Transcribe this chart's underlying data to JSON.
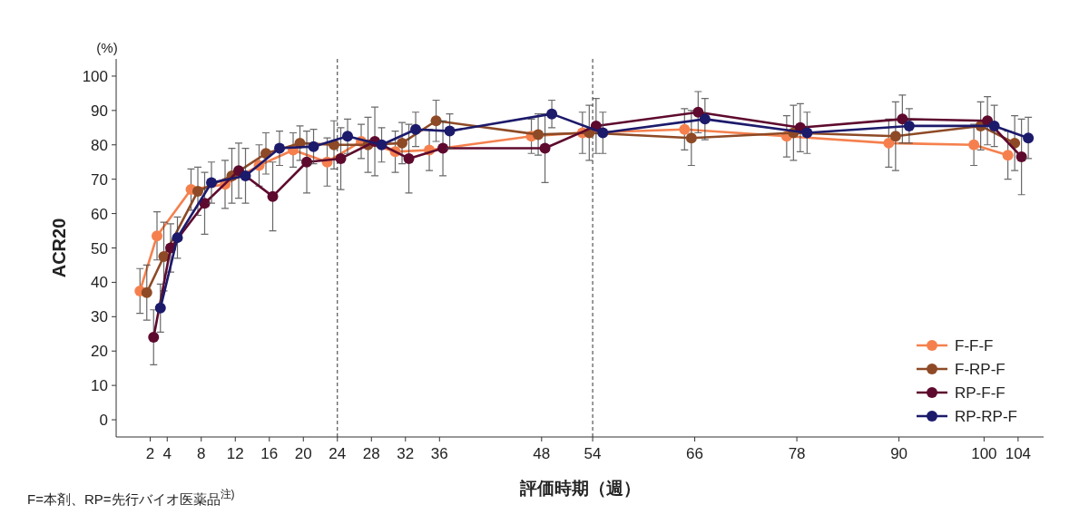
{
  "chart_data": {
    "type": "line",
    "ylabel": "ACR20",
    "xlabel": "評価時期（週）",
    "annotations": [
      "(%)",
      "F=本剤、RP=先行バイオ医薬品$^{注)}$"
    ],
    "xlim": [
      -2,
      107
    ],
    "xticks": [
      2,
      4,
      8,
      12,
      16,
      20,
      24,
      28,
      32,
      36,
      48,
      54,
      66,
      78,
      90,
      100,
      104
    ],
    "ylim": [
      -5,
      105
    ],
    "yticks": [
      0,
      10,
      20,
      30,
      40,
      50,
      60,
      70,
      80,
      90,
      100
    ],
    "grid": false,
    "legend": "bottom right",
    "marker": "circle",
    "line_style": "solid",
    "ref_lines": [
      {
        "axis": "x",
        "value": 24,
        "line_style": "dashed",
        "color": "#333333"
      },
      {
        "axis": "x",
        "value": 54,
        "line_style": "dashed",
        "color": "#333333"
      }
    ],
    "series": [
      {
        "name": "F-F-F",
        "color": "#f5804e",
        "x": [
          0.8,
          2.8,
          6.8,
          10.8,
          14.8,
          18.8,
          22.8,
          26.8,
          30.8,
          34.8,
          46.8,
          52.8,
          64.8,
          76.8,
          88.8,
          98.8,
          102.8
        ],
        "values": [
          37.5,
          53.5,
          67,
          68.5,
          74,
          78.5,
          75,
          81,
          78,
          78.5,
          82.5,
          83.5,
          84.5,
          82.5,
          80.5,
          80,
          77
        ],
        "errors": [
          6.5,
          7,
          6,
          7,
          6,
          5,
          7,
          5,
          6,
          6,
          5,
          6,
          6,
          6,
          7,
          6,
          7
        ]
      },
      {
        "name": "F-RP-F",
        "color": "#8e4a26",
        "x": [
          1.6,
          3.6,
          7.6,
          11.6,
          15.6,
          19.6,
          23.6,
          27.6,
          31.6,
          35.6,
          47.6,
          53.6,
          65.6,
          77.6,
          89.6,
          99.6,
          103.6
        ],
        "values": [
          37,
          47.5,
          66.5,
          71,
          77.5,
          80.5,
          80,
          80,
          80.5,
          87,
          83,
          83.5,
          82,
          83.5,
          82.5,
          85.5,
          80.5
        ],
        "errors": [
          8,
          10,
          7,
          8,
          6,
          5,
          7,
          8,
          6,
          6,
          6,
          8,
          8,
          8,
          10,
          7,
          8
        ]
      },
      {
        "name": "RP-F-F",
        "color": "#5e0a2e",
        "x": [
          2.4,
          4.4,
          8.4,
          12.4,
          16.4,
          20.4,
          24.4,
          28.4,
          32.4,
          36.4,
          48.4,
          54.4,
          66.4,
          78.4,
          90.4,
          100.4,
          104.4
        ],
        "values": [
          24,
          50,
          63,
          72.5,
          65,
          75,
          76,
          81,
          76,
          79,
          79,
          85.5,
          89.5,
          85,
          87.5,
          87,
          76.5
        ],
        "errors": [
          8,
          7,
          9,
          8,
          10,
          9,
          9,
          10,
          10,
          8,
          10,
          8,
          6,
          7,
          7,
          7,
          11
        ]
      },
      {
        "name": "RP-RP-F",
        "color": "#1c1a6b",
        "x": [
          3.2,
          5.2,
          9.2,
          13.2,
          17.2,
          21.2,
          25.2,
          29.2,
          33.2,
          37.2,
          49.2,
          55.2,
          67.2,
          79.2,
          91.2,
          101.2,
          105.2
        ],
        "values": [
          32.5,
          53,
          69,
          71,
          79,
          79.5,
          82.5,
          80,
          84.5,
          84,
          89,
          83.5,
          87.5,
          83.5,
          85.5,
          85.5,
          82
        ],
        "errors": [
          7,
          6,
          6,
          8,
          5,
          5,
          5,
          5,
          5,
          5,
          4,
          6,
          6,
          6,
          5,
          6,
          6
        ]
      }
    ]
  }
}
